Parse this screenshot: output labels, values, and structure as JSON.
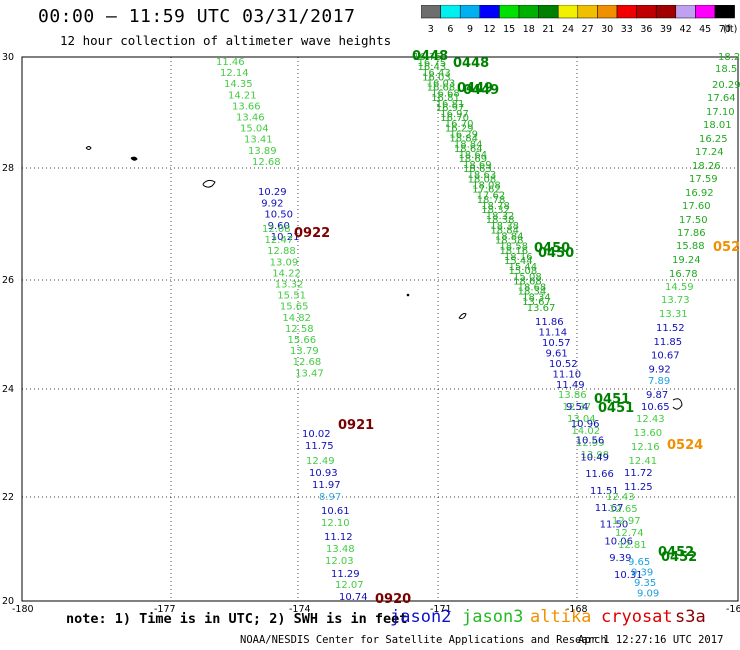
{
  "title": "00:00 – 11:59 UTC 03/31/2017",
  "subtitle": "12 hour collection of altimeter wave heights",
  "colorbar": {
    "ticks": [
      "3",
      "6",
      "9",
      "12",
      "15",
      "18",
      "21",
      "24",
      "27",
      "30",
      "33",
      "36",
      "39",
      "42",
      "45",
      "70"
    ],
    "unit": "(ft)",
    "colors": [
      "#6e6e6e",
      "#00f0f0",
      "#00b0f0",
      "#0000ff",
      "#00e000",
      "#00b000",
      "#008000",
      "#f0f000",
      "#f0c000",
      "#f09000",
      "#f00000",
      "#c00000",
      "#a00000",
      "#c0a0f0",
      "#ff00ff",
      "#000000"
    ]
  },
  "axes": {
    "x_ticks": [
      "-180",
      "-177",
      "-174",
      "-171",
      "-168",
      "-16"
    ],
    "y_ticks": [
      "30",
      "28",
      "26",
      "24",
      "22",
      "20"
    ]
  },
  "passes": [
    {
      "id": "p1",
      "color": "#44cc44",
      "labels": [
        "11.46",
        "12.14",
        "14.35",
        "14.21",
        "13.66",
        "13.46",
        "15.04",
        "13.41",
        "13.89",
        "12.68"
      ]
    },
    {
      "id": "p1b",
      "color": "#1010bb",
      "labels": [
        "10.29",
        "9.92",
        "10.50",
        "9.60",
        "10.21"
      ]
    },
    {
      "id": "p1c",
      "color": "#44cc44",
      "labels": [
        "12.08",
        "12.47",
        "12.88",
        "13.09",
        "14.22",
        "13.32",
        "15.51",
        "15.65",
        "14.82",
        "12.58",
        "15.66",
        "13.79",
        "12.68",
        "13.47"
      ]
    },
    {
      "id": "p1d",
      "color": "#1010bb",
      "labels": [
        "10.02",
        "11.75"
      ]
    },
    {
      "id": "p1e",
      "color": "#44cc44",
      "labels": [
        "12.49"
      ]
    },
    {
      "id": "p1f",
      "color": "#1010bb",
      "labels": [
        "10.93",
        "11.97"
      ]
    },
    {
      "id": "p1g",
      "color": "#33aadd",
      "labels": [
        "8.97"
      ]
    },
    {
      "id": "p1h",
      "color": "#1010bb",
      "labels": [
        "10.61"
      ]
    },
    {
      "id": "p1i",
      "color": "#44cc44",
      "labels": [
        "12.10"
      ]
    },
    {
      "id": "p1j",
      "color": "#1010bb",
      "labels": [
        "11.12"
      ]
    },
    {
      "id": "p1k",
      "color": "#44cc44",
      "labels": [
        "13.48",
        "12.03"
      ]
    },
    {
      "id": "p1l",
      "color": "#1010bb",
      "labels": [
        "11.29"
      ]
    },
    {
      "id": "p1m",
      "color": "#44cc44",
      "labels": [
        "12.07"
      ]
    },
    {
      "id": "p1n",
      "color": "#1010bb",
      "labels": [
        "10.74"
      ]
    }
  ],
  "pass_right": {
    "top": [
      "18.2",
      "18.5",
      "20.29",
      "17.64",
      "17.10",
      "18.01",
      "16.25",
      "17.24",
      "18.26",
      "17.59",
      "16.92",
      "17.60",
      "17.50",
      "17.86",
      "15.88",
      "19.24",
      "16.78",
      "14.59",
      "13.73",
      "13.31"
    ],
    "blue": [
      "11.52",
      "11.85",
      "10.67",
      "9.92"
    ],
    "cyan": [
      "7.89"
    ],
    "blue2": [
      "9.87",
      "10.65"
    ],
    "green2": [
      "12.43",
      "13.60",
      "12.16",
      "12.41"
    ],
    "blue3": [
      "11.72",
      "11.25"
    ]
  },
  "diag_labels": [
    "16.75",
    "16.43",
    "16.03",
    "16.68",
    "16.81",
    "16.97",
    "16.70",
    "16.29",
    "18.84",
    "18.64",
    "18.69",
    "18.63",
    "18.08",
    "17.62",
    "18.78",
    "18.32",
    "18.38",
    "18.84",
    "18.58",
    "18.16",
    "15.44",
    "15.08",
    "18.68",
    "18.34",
    "13.67"
  ],
  "diag_blue": [
    "11.86",
    "11.14",
    "10.57",
    "9.61",
    "10.52",
    "11.10",
    "11.49"
  ],
  "diag_green2": [
    "13.86",
    "12.37",
    "13.04",
    "14.02",
    "12.99",
    "13.98"
  ],
  "diag_blue2": [
    "9.54",
    "10.96",
    "10.56",
    "10.49",
    "11.66",
    "11.51",
    "11.67",
    "11.50",
    "10.06",
    "9.39",
    "10.31"
  ],
  "diag_cyan": [
    "9.65",
    "9.39",
    "9.35",
    "9.09"
  ],
  "diag_green3": [
    "12.43",
    "12.65",
    "12.97",
    "12.74",
    "12.81"
  ],
  "orbits": [
    {
      "label": "0448",
      "color": "#008000"
    },
    {
      "label": "0449",
      "color": "#008000"
    },
    {
      "label": "0450",
      "color": "#008000"
    },
    {
      "label": "0451",
      "color": "#008000"
    },
    {
      "label": "0452",
      "color": "#008000"
    },
    {
      "label": "0922",
      "color": "#7a0000"
    },
    {
      "label": "0921",
      "color": "#7a0000"
    },
    {
      "label": "0920",
      "color": "#7a0000"
    },
    {
      "label": "0524",
      "color": "#f09000"
    },
    {
      "label": "052",
      "color": "#f09000"
    }
  ],
  "note": "note: 1) Time is in UTC; 2) SWH is in feet",
  "legend": [
    {
      "label": "jason2",
      "color": "#1010cc"
    },
    {
      "label": "jason3",
      "color": "#22bb22"
    },
    {
      "label": "altika",
      "color": "#f09000"
    },
    {
      "label": "cryosat",
      "color": "#dd0000"
    },
    {
      "label": "s3a",
      "color": "#880000"
    }
  ],
  "footer": "NOAA/NESDIS Center for Satellite Applications and Research",
  "footer_date": "Apr  1 12:27:16 UTC 2017"
}
